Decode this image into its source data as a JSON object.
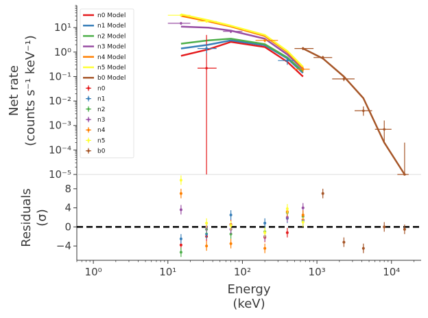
{
  "chart_data": {
    "type": "scatter",
    "top_panel": {
      "ylabel_line1": "Net rate",
      "ylabel_line2": "(counts s⁻¹ keV⁻¹)",
      "yscale": "log",
      "ylim": [
        1e-05,
        80
      ],
      "yticks": [
        {
          "value": 10,
          "label": "10¹"
        },
        {
          "value": 1,
          "label": "10⁰"
        },
        {
          "value": 0.1,
          "label": "10⁻¹"
        },
        {
          "value": 0.01,
          "label": "10⁻²"
        },
        {
          "value": 0.001,
          "label": "10⁻³"
        },
        {
          "value": 0.0001,
          "label": "10⁻⁴"
        },
        {
          "value": 1e-05,
          "label": "10⁻⁵"
        }
      ],
      "models": [
        {
          "name": "n0 Model",
          "color": "#e41a1c",
          "x": [
            15,
            35,
            70,
            200,
            400,
            650
          ],
          "y": [
            0.7,
            1.3,
            2.6,
            1.6,
            0.4,
            0.1
          ]
        },
        {
          "name": "n1 Model",
          "color": "#377eb8",
          "x": [
            15,
            35,
            70,
            200,
            400,
            650
          ],
          "y": [
            1.4,
            2.0,
            3.0,
            1.9,
            0.55,
            0.14
          ]
        },
        {
          "name": "n2 Model",
          "color": "#4daf4a",
          "x": [
            15,
            35,
            70,
            200,
            400,
            650
          ],
          "y": [
            2.2,
            3.0,
            3.5,
            2.1,
            0.6,
            0.16
          ]
        },
        {
          "name": "n3 Model",
          "color": "#984ea3",
          "x": [
            15,
            35,
            70,
            200,
            400,
            650
          ],
          "y": [
            11,
            10,
            7.5,
            3.5,
            0.8,
            0.2
          ]
        },
        {
          "name": "n4 Model",
          "color": "#ff7f00",
          "x": [
            15,
            35,
            70,
            200,
            400,
            650
          ],
          "y": [
            30,
            18,
            11,
            4.5,
            1.0,
            0.22
          ]
        },
        {
          "name": "n5 Model",
          "color": "#ffff33",
          "x": [
            15,
            35,
            70,
            200,
            400,
            650
          ],
          "y": [
            35,
            20,
            12,
            5,
            1.1,
            0.25
          ]
        },
        {
          "name": "b0 Model",
          "color": "#a65628",
          "x": [
            650,
            1200,
            2300,
            4200,
            8000,
            15000
          ],
          "y": [
            1.4,
            0.55,
            0.1,
            0.013,
            0.0002,
            6e-06
          ]
        }
      ],
      "data": [
        {
          "name": "n0",
          "color": "#e41a1c",
          "points": [
            {
              "x": 33,
              "y": 0.22,
              "xlo": 25,
              "xhi": 45,
              "ylo": 1e-06,
              "yhi": 5
            }
          ]
        },
        {
          "name": "n1",
          "color": "#377eb8",
          "points": [
            {
              "x": 33,
              "y": 1.4,
              "xlo": 25,
              "xhi": 45,
              "ylo": 0.9,
              "yhi": 2.0
            },
            {
              "x": 400,
              "y": 0.45,
              "xlo": 300,
              "xhi": 500,
              "ylo": 0.3,
              "yhi": 0.6
            }
          ]
        },
        {
          "name": "n2",
          "color": "#4daf4a",
          "points": []
        },
        {
          "name": "n3",
          "color": "#984ea3",
          "points": [
            {
              "x": 15,
              "y": 15,
              "xlo": 10,
              "xhi": 20,
              "ylo": 13,
              "yhi": 17
            },
            {
              "x": 70,
              "y": 7,
              "xlo": 55,
              "xhi": 100,
              "ylo": 6,
              "yhi": 8
            }
          ]
        },
        {
          "name": "n4",
          "color": "#ff7f00",
          "points": [
            {
              "x": 200,
              "y": 3.0,
              "xlo": 150,
              "xhi": 300,
              "ylo": 2.5,
              "yhi": 3.5
            },
            {
              "x": 650,
              "y": 0.2,
              "xlo": 500,
              "xhi": 800,
              "ylo": 0.15,
              "yhi": 0.25
            }
          ]
        },
        {
          "name": "n5",
          "color": "#ffff33",
          "points": [
            {
              "x": 15,
              "y": 32,
              "xlo": 10,
              "xhi": 20,
              "ylo": 29,
              "yhi": 36
            },
            {
              "x": 33,
              "y": 18,
              "xlo": 25,
              "xhi": 45,
              "ylo": 16,
              "yhi": 20
            }
          ]
        },
        {
          "name": "b0",
          "color": "#a65628",
          "points": [
            {
              "x": 650,
              "y": 1.4,
              "xlo": 500,
              "xhi": 900,
              "ylo": 1.2,
              "yhi": 1.6
            },
            {
              "x": 1200,
              "y": 0.6,
              "xlo": 900,
              "xhi": 1600,
              "ylo": 0.5,
              "yhi": 0.7
            },
            {
              "x": 2300,
              "y": 0.08,
              "xlo": 1600,
              "xhi": 3200,
              "ylo": 0.065,
              "yhi": 0.1
            },
            {
              "x": 4200,
              "y": 0.004,
              "xlo": 3200,
              "xhi": 5500,
              "ylo": 0.0025,
              "yhi": 0.006
            },
            {
              "x": 8000,
              "y": 0.0007,
              "xlo": 6000,
              "xhi": 10000,
              "ylo": 0.0002,
              "yhi": 0.0016
            },
            {
              "x": 15000,
              "y": 5e-06,
              "xlo": 12000,
              "xhi": 17000,
              "ylo": 1e-06,
              "yhi": 0.0002
            }
          ]
        }
      ]
    },
    "residual_panel": {
      "ylabel_line1": "Residuals",
      "ylabel_line2": "(σ)",
      "ylim": [
        -7,
        11
      ],
      "yticks": [
        {
          "value": 8,
          "label": "8"
        },
        {
          "value": 4,
          "label": "4"
        },
        {
          "value": 0,
          "label": "0"
        },
        {
          "value": -4,
          "label": "−4"
        }
      ],
      "zero_line": 0,
      "series": [
        {
          "name": "n0",
          "color": "#e41a1c",
          "points": [
            {
              "x": 15,
              "y": -3.8
            },
            {
              "x": 33,
              "y": -2
            },
            {
              "x": 70,
              "y": 0.5
            },
            {
              "x": 200,
              "y": -2.2
            },
            {
              "x": 400,
              "y": -1.2
            },
            {
              "x": 650,
              "y": 1.5
            }
          ]
        },
        {
          "name": "n1",
          "color": "#377eb8",
          "points": [
            {
              "x": 15,
              "y": -2.5
            },
            {
              "x": 33,
              "y": -1.5
            },
            {
              "x": 70,
              "y": 2.5
            },
            {
              "x": 200,
              "y": 0.8
            },
            {
              "x": 400,
              "y": 1.8
            },
            {
              "x": 650,
              "y": 1.2
            }
          ]
        },
        {
          "name": "n2",
          "color": "#4daf4a",
          "points": [
            {
              "x": 15,
              "y": -5.3
            },
            {
              "x": 33,
              "y": -0.5
            },
            {
              "x": 70,
              "y": -1.5
            },
            {
              "x": 200,
              "y": -1.0
            },
            {
              "x": 400,
              "y": 3.0
            },
            {
              "x": 650,
              "y": 2.2
            }
          ]
        },
        {
          "name": "n3",
          "color": "#984ea3",
          "points": [
            {
              "x": 15,
              "y": 3.6
            },
            {
              "x": 33,
              "y": 0.0
            },
            {
              "x": 70,
              "y": -0.5
            },
            {
              "x": 200,
              "y": -2.0
            },
            {
              "x": 400,
              "y": 2.0
            },
            {
              "x": 650,
              "y": 4.0
            }
          ]
        },
        {
          "name": "n4",
          "color": "#ff7f00",
          "points": [
            {
              "x": 15,
              "y": 7.0
            },
            {
              "x": 33,
              "y": -4.0
            },
            {
              "x": 70,
              "y": -3.5
            },
            {
              "x": 200,
              "y": -4.5
            },
            {
              "x": 400,
              "y": 3.2
            },
            {
              "x": 650,
              "y": 2.5
            }
          ]
        },
        {
          "name": "n5",
          "color": "#ffff33",
          "points": [
            {
              "x": 15,
              "y": 9.8
            },
            {
              "x": 33,
              "y": 0.8
            },
            {
              "x": 70,
              "y": 0.3
            },
            {
              "x": 200,
              "y": -1.2
            },
            {
              "x": 400,
              "y": 3.8
            },
            {
              "x": 650,
              "y": 1.0
            }
          ]
        },
        {
          "name": "b0",
          "color": "#a65628",
          "points": [
            {
              "x": 1200,
              "y": 7.0
            },
            {
              "x": 2300,
              "y": -3.2
            },
            {
              "x": 4200,
              "y": -4.5
            },
            {
              "x": 8000,
              "y": 0.0
            },
            {
              "x": 15000,
              "y": -0.5
            }
          ]
        }
      ]
    },
    "xlabel_line1": "Energy",
    "xlabel_line2": "(keV)",
    "xscale": "log",
    "xlim": [
      0.6,
      25000
    ],
    "xticks": [
      {
        "value": 1,
        "label": "10⁰"
      },
      {
        "value": 10,
        "label": "10¹"
      },
      {
        "value": 100,
        "label": "10²"
      },
      {
        "value": 1000,
        "label": "10³"
      },
      {
        "value": 10000,
        "label": "10⁴"
      }
    ],
    "legend_position": "top-left"
  }
}
